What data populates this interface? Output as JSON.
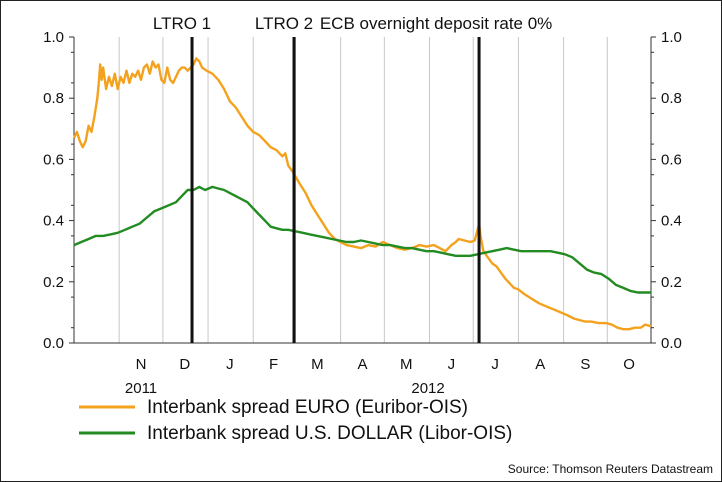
{
  "chart_data": {
    "type": "line",
    "title": "",
    "xlabel": "",
    "ylabel": "",
    "ylim": [
      0,
      1
    ],
    "y_ticks": [
      "0.0",
      "0.2",
      "0.4",
      "0.6",
      "0.8",
      "1.0"
    ],
    "y_ticks_right": [
      "0.0",
      "0.2",
      "0.4",
      "0.6",
      "0.8",
      "1.0"
    ],
    "x_range": [
      "2011-10-01",
      "2012-10-31"
    ],
    "month_labels": [
      {
        "label": "N",
        "date": "2011-11-16"
      },
      {
        "label": "D",
        "date": "2011-12-16"
      },
      {
        "label": "J",
        "date": "2012-01-16"
      },
      {
        "label": "F",
        "date": "2012-02-15"
      },
      {
        "label": "M",
        "date": "2012-03-16"
      },
      {
        "label": "A",
        "date": "2012-04-16"
      },
      {
        "label": "M",
        "date": "2012-05-16"
      },
      {
        "label": "J",
        "date": "2012-06-16"
      },
      {
        "label": "J",
        "date": "2012-07-16"
      },
      {
        "label": "A",
        "date": "2012-08-16"
      },
      {
        "label": "S",
        "date": "2012-09-16"
      },
      {
        "label": "O",
        "date": "2012-10-16"
      }
    ],
    "month_gridlines": [
      "2011-11-01",
      "2011-12-01",
      "2012-01-01",
      "2012-02-01",
      "2012-03-01",
      "2012-04-01",
      "2012-05-01",
      "2012-06-01",
      "2012-07-01",
      "2012-08-01",
      "2012-09-01",
      "2012-10-01"
    ],
    "year_labels": [
      {
        "label": "2011",
        "date": "2011-11-16"
      },
      {
        "label": "2012",
        "date": "2012-05-31"
      }
    ],
    "events": [
      {
        "label": "LTRO 1",
        "date": "2011-12-21"
      },
      {
        "label": "LTRO 2",
        "date": "2012-02-29"
      },
      {
        "label": "ECB overnight deposit rate 0%",
        "date": "2012-07-05"
      }
    ],
    "grid": "vertical",
    "legend_position": "bottom",
    "series": [
      {
        "name": "Interbank spread EURO (Euribor-OIS)",
        "color": "#F4A21E",
        "points": [
          [
            "2011-10-01",
            0.67
          ],
          [
            "2011-10-03",
            0.69
          ],
          [
            "2011-10-05",
            0.66
          ],
          [
            "2011-10-07",
            0.64
          ],
          [
            "2011-10-09",
            0.66
          ],
          [
            "2011-10-11",
            0.71
          ],
          [
            "2011-10-13",
            0.69
          ],
          [
            "2011-10-15",
            0.74
          ],
          [
            "2011-10-17",
            0.8
          ],
          [
            "2011-10-18",
            0.85
          ],
          [
            "2011-10-19",
            0.91
          ],
          [
            "2011-10-20",
            0.86
          ],
          [
            "2011-10-21",
            0.9
          ],
          [
            "2011-10-23",
            0.83
          ],
          [
            "2011-10-25",
            0.87
          ],
          [
            "2011-10-27",
            0.84
          ],
          [
            "2011-10-29",
            0.88
          ],
          [
            "2011-10-31",
            0.83
          ],
          [
            "2011-11-02",
            0.87
          ],
          [
            "2011-11-04",
            0.85
          ],
          [
            "2011-11-06",
            0.89
          ],
          [
            "2011-11-08",
            0.85
          ],
          [
            "2011-11-10",
            0.88
          ],
          [
            "2011-11-12",
            0.87
          ],
          [
            "2011-11-14",
            0.89
          ],
          [
            "2011-11-16",
            0.86
          ],
          [
            "2011-11-18",
            0.9
          ],
          [
            "2011-11-20",
            0.91
          ],
          [
            "2011-11-22",
            0.88
          ],
          [
            "2011-11-24",
            0.92
          ],
          [
            "2011-11-26",
            0.9
          ],
          [
            "2011-11-28",
            0.91
          ],
          [
            "2011-11-30",
            0.86
          ],
          [
            "2011-12-02",
            0.85
          ],
          [
            "2011-12-04",
            0.9
          ],
          [
            "2011-12-06",
            0.86
          ],
          [
            "2011-12-08",
            0.85
          ],
          [
            "2011-12-10",
            0.87
          ],
          [
            "2011-12-12",
            0.89
          ],
          [
            "2011-12-14",
            0.9
          ],
          [
            "2011-12-16",
            0.9
          ],
          [
            "2011-12-18",
            0.89
          ],
          [
            "2011-12-20",
            0.9
          ],
          [
            "2011-12-22",
            0.91
          ],
          [
            "2011-12-24",
            0.93
          ],
          [
            "2011-12-26",
            0.92
          ],
          [
            "2011-12-28",
            0.9
          ],
          [
            "2011-12-31",
            0.89
          ],
          [
            "2012-01-04",
            0.88
          ],
          [
            "2012-01-08",
            0.86
          ],
          [
            "2012-01-12",
            0.83
          ],
          [
            "2012-01-16",
            0.79
          ],
          [
            "2012-01-20",
            0.77
          ],
          [
            "2012-01-24",
            0.74
          ],
          [
            "2012-01-28",
            0.71
          ],
          [
            "2012-02-01",
            0.69
          ],
          [
            "2012-02-05",
            0.68
          ],
          [
            "2012-02-09",
            0.66
          ],
          [
            "2012-02-13",
            0.64
          ],
          [
            "2012-02-17",
            0.63
          ],
          [
            "2012-02-21",
            0.61
          ],
          [
            "2012-02-23",
            0.62
          ],
          [
            "2012-02-25",
            0.58
          ],
          [
            "2012-02-28",
            0.56
          ],
          [
            "2012-03-04",
            0.52
          ],
          [
            "2012-03-08",
            0.49
          ],
          [
            "2012-03-12",
            0.45
          ],
          [
            "2012-03-16",
            0.42
          ],
          [
            "2012-03-20",
            0.39
          ],
          [
            "2012-03-24",
            0.36
          ],
          [
            "2012-03-28",
            0.34
          ],
          [
            "2012-04-01",
            0.33
          ],
          [
            "2012-04-05",
            0.32
          ],
          [
            "2012-04-10",
            0.315
          ],
          [
            "2012-04-15",
            0.31
          ],
          [
            "2012-04-20",
            0.32
          ],
          [
            "2012-04-25",
            0.315
          ],
          [
            "2012-04-30",
            0.33
          ],
          [
            "2012-05-05",
            0.32
          ],
          [
            "2012-05-10",
            0.31
          ],
          [
            "2012-05-15",
            0.305
          ],
          [
            "2012-05-20",
            0.31
          ],
          [
            "2012-05-25",
            0.32
          ],
          [
            "2012-05-30",
            0.315
          ],
          [
            "2012-06-04",
            0.32
          ],
          [
            "2012-06-08",
            0.31
          ],
          [
            "2012-06-12",
            0.3
          ],
          [
            "2012-06-16",
            0.32
          ],
          [
            "2012-06-19",
            0.33
          ],
          [
            "2012-06-21",
            0.34
          ],
          [
            "2012-06-25",
            0.335
          ],
          [
            "2012-06-29",
            0.33
          ],
          [
            "2012-07-02",
            0.335
          ],
          [
            "2012-07-04",
            0.37
          ],
          [
            "2012-07-05",
            0.39
          ],
          [
            "2012-07-06",
            0.35
          ],
          [
            "2012-07-08",
            0.3
          ],
          [
            "2012-07-11",
            0.28
          ],
          [
            "2012-07-14",
            0.26
          ],
          [
            "2012-07-17",
            0.25
          ],
          [
            "2012-07-20",
            0.23
          ],
          [
            "2012-07-23",
            0.21
          ],
          [
            "2012-07-26",
            0.195
          ],
          [
            "2012-07-29",
            0.18
          ],
          [
            "2012-08-01",
            0.175
          ],
          [
            "2012-08-05",
            0.16
          ],
          [
            "2012-08-10",
            0.145
          ],
          [
            "2012-08-15",
            0.13
          ],
          [
            "2012-08-20",
            0.12
          ],
          [
            "2012-08-25",
            0.11
          ],
          [
            "2012-08-30",
            0.1
          ],
          [
            "2012-09-04",
            0.09
          ],
          [
            "2012-09-08",
            0.08
          ],
          [
            "2012-09-12",
            0.075
          ],
          [
            "2012-09-16",
            0.07
          ],
          [
            "2012-09-20",
            0.07
          ],
          [
            "2012-09-25",
            0.065
          ],
          [
            "2012-09-30",
            0.065
          ],
          [
            "2012-10-04",
            0.06
          ],
          [
            "2012-10-08",
            0.05
          ],
          [
            "2012-10-12",
            0.045
          ],
          [
            "2012-10-16",
            0.045
          ],
          [
            "2012-10-20",
            0.05
          ],
          [
            "2012-10-24",
            0.05
          ],
          [
            "2012-10-27",
            0.06
          ],
          [
            "2012-10-31",
            0.055
          ]
        ]
      },
      {
        "name": "Interbank spread U.S. DOLLAR (Libor-OIS)",
        "color": "#228B22",
        "points": [
          [
            "2011-10-01",
            0.32
          ],
          [
            "2011-10-06",
            0.33
          ],
          [
            "2011-10-11",
            0.34
          ],
          [
            "2011-10-16",
            0.35
          ],
          [
            "2011-10-21",
            0.35
          ],
          [
            "2011-10-26",
            0.355
          ],
          [
            "2011-10-31",
            0.36
          ],
          [
            "2011-11-05",
            0.37
          ],
          [
            "2011-11-10",
            0.38
          ],
          [
            "2011-11-15",
            0.39
          ],
          [
            "2011-11-20",
            0.41
          ],
          [
            "2011-11-25",
            0.43
          ],
          [
            "2011-11-30",
            0.44
          ],
          [
            "2011-12-05",
            0.45
          ],
          [
            "2011-12-10",
            0.46
          ],
          [
            "2011-12-14",
            0.48
          ],
          [
            "2011-12-18",
            0.5
          ],
          [
            "2011-12-22",
            0.5
          ],
          [
            "2011-12-26",
            0.51
          ],
          [
            "2011-12-30",
            0.5
          ],
          [
            "2012-01-04",
            0.51
          ],
          [
            "2012-01-08",
            0.505
          ],
          [
            "2012-01-12",
            0.5
          ],
          [
            "2012-01-16",
            0.49
          ],
          [
            "2012-01-20",
            0.48
          ],
          [
            "2012-01-24",
            0.47
          ],
          [
            "2012-01-28",
            0.46
          ],
          [
            "2012-02-01",
            0.44
          ],
          [
            "2012-02-05",
            0.42
          ],
          [
            "2012-02-09",
            0.4
          ],
          [
            "2012-02-13",
            0.38
          ],
          [
            "2012-02-17",
            0.375
          ],
          [
            "2012-02-21",
            0.37
          ],
          [
            "2012-02-25",
            0.37
          ],
          [
            "2012-03-01",
            0.365
          ],
          [
            "2012-03-06",
            0.36
          ],
          [
            "2012-03-11",
            0.355
          ],
          [
            "2012-03-16",
            0.35
          ],
          [
            "2012-03-21",
            0.345
          ],
          [
            "2012-03-26",
            0.34
          ],
          [
            "2012-03-31",
            0.335
          ],
          [
            "2012-04-05",
            0.33
          ],
          [
            "2012-04-10",
            0.33
          ],
          [
            "2012-04-15",
            0.335
          ],
          [
            "2012-04-20",
            0.33
          ],
          [
            "2012-04-25",
            0.325
          ],
          [
            "2012-04-30",
            0.32
          ],
          [
            "2012-05-05",
            0.32
          ],
          [
            "2012-05-10",
            0.315
          ],
          [
            "2012-05-15",
            0.31
          ],
          [
            "2012-05-20",
            0.31
          ],
          [
            "2012-05-25",
            0.305
          ],
          [
            "2012-05-30",
            0.3
          ],
          [
            "2012-06-04",
            0.3
          ],
          [
            "2012-06-09",
            0.295
          ],
          [
            "2012-06-14",
            0.29
          ],
          [
            "2012-06-19",
            0.285
          ],
          [
            "2012-06-24",
            0.285
          ],
          [
            "2012-06-29",
            0.285
          ],
          [
            "2012-07-04",
            0.29
          ],
          [
            "2012-07-09",
            0.295
          ],
          [
            "2012-07-14",
            0.3
          ],
          [
            "2012-07-19",
            0.305
          ],
          [
            "2012-07-24",
            0.31
          ],
          [
            "2012-07-29",
            0.305
          ],
          [
            "2012-08-03",
            0.3
          ],
          [
            "2012-08-08",
            0.3
          ],
          [
            "2012-08-13",
            0.3
          ],
          [
            "2012-08-18",
            0.3
          ],
          [
            "2012-08-23",
            0.3
          ],
          [
            "2012-08-28",
            0.295
          ],
          [
            "2012-09-02",
            0.29
          ],
          [
            "2012-09-07",
            0.28
          ],
          [
            "2012-09-12",
            0.26
          ],
          [
            "2012-09-17",
            0.24
          ],
          [
            "2012-09-22",
            0.23
          ],
          [
            "2012-09-27",
            0.225
          ],
          [
            "2012-10-02",
            0.21
          ],
          [
            "2012-10-07",
            0.19
          ],
          [
            "2012-10-12",
            0.18
          ],
          [
            "2012-10-17",
            0.17
          ],
          [
            "2012-10-22",
            0.165
          ],
          [
            "2012-10-27",
            0.165
          ],
          [
            "2012-10-31",
            0.165
          ]
        ]
      }
    ],
    "source": "Source: Thomson Reuters Datastream"
  }
}
